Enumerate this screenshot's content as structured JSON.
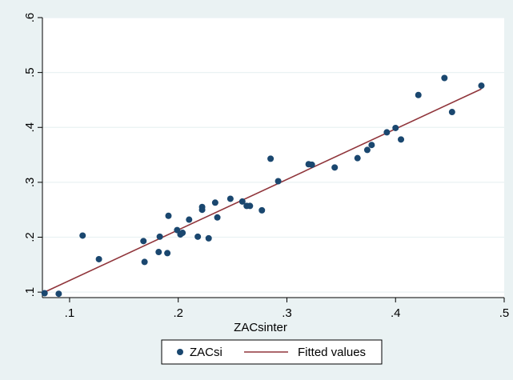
{
  "chart_data": {
    "type": "scatter",
    "title": "",
    "xlabel": "ZACsinter",
    "ylabel": "",
    "xlim": [
      0.075,
      0.5
    ],
    "ylim": [
      0.09,
      0.6
    ],
    "x_ticks": [
      0.1,
      0.2,
      0.3,
      0.4,
      0.5
    ],
    "x_tick_labels": [
      ".1",
      ".2",
      ".3",
      ".4",
      ".5"
    ],
    "y_ticks": [
      0.1,
      0.2,
      0.3,
      0.4,
      0.5,
      0.6
    ],
    "y_tick_labels": [
      ".1",
      ".2",
      ".3",
      ".4",
      ".5",
      ".6"
    ],
    "grid": "horizontal",
    "legend_position": "bottom",
    "colors": {
      "background": "#eaf2f3",
      "plot_background": "#ffffff",
      "scatter": "#1a476f",
      "fitted": "#90353b"
    },
    "series": [
      {
        "name": "ZACsi",
        "kind": "scatter",
        "x": [
          0.077,
          0.09,
          0.112,
          0.127,
          0.168,
          0.169,
          0.182,
          0.183,
          0.19,
          0.191,
          0.199,
          0.202,
          0.204,
          0.21,
          0.218,
          0.222,
          0.222,
          0.228,
          0.234,
          0.236,
          0.248,
          0.259,
          0.263,
          0.266,
          0.277,
          0.285,
          0.292,
          0.32,
          0.323,
          0.344,
          0.365,
          0.374,
          0.378,
          0.392,
          0.4,
          0.405,
          0.421,
          0.445,
          0.452,
          0.479
        ],
        "y": [
          0.098,
          0.097,
          0.203,
          0.16,
          0.193,
          0.155,
          0.173,
          0.201,
          0.171,
          0.239,
          0.213,
          0.205,
          0.208,
          0.232,
          0.201,
          0.25,
          0.255,
          0.198,
          0.263,
          0.236,
          0.27,
          0.265,
          0.257,
          0.257,
          0.249,
          0.343,
          0.302,
          0.333,
          0.332,
          0.327,
          0.344,
          0.359,
          0.368,
          0.391,
          0.399,
          0.378,
          0.459,
          0.49,
          0.428,
          0.476
        ]
      },
      {
        "name": "Fitted values",
        "kind": "line",
        "x": [
          0.077,
          0.479
        ],
        "y": [
          0.1,
          0.47
        ]
      }
    ]
  }
}
